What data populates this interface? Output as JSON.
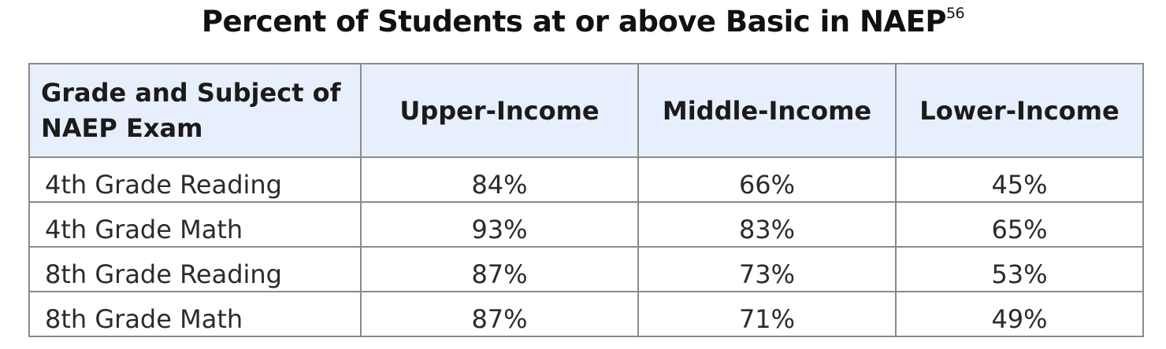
{
  "chart_data": {
    "type": "table",
    "title": "Percent of Students at or above Basic in NAEP",
    "title_footnote": "56",
    "columns": [
      "Grade and Subject of NAEP Exam",
      "Upper-Income",
      "Middle-Income",
      "Lower-Income"
    ],
    "rows": [
      [
        "4th Grade Reading",
        "84%",
        "66%",
        "45%"
      ],
      [
        "4th Grade Math",
        "93%",
        "83%",
        "65%"
      ],
      [
        "8th Grade Reading",
        "87%",
        "73%",
        "53%"
      ],
      [
        "8th Grade Math",
        "87%",
        "71%",
        "49%"
      ]
    ],
    "header_background": "#e8effc",
    "grid": true
  }
}
